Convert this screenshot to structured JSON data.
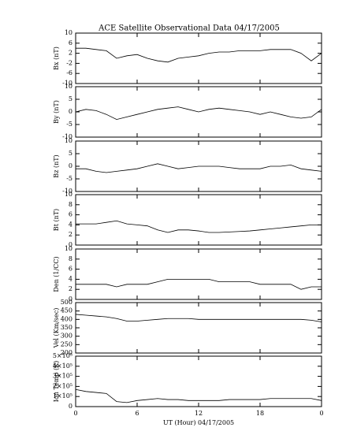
{
  "chart_data": [
    {
      "type": "line",
      "title": "ACE Satellite Observational Data   04/17/2005",
      "ylabel": "Bx (nT)",
      "ylim": [
        -10,
        10
      ],
      "yticks": [
        -10,
        -6,
        -2,
        2,
        6,
        10
      ],
      "x": [
        0,
        1,
        2,
        3,
        4,
        5,
        6,
        7,
        8,
        9,
        10,
        11,
        12,
        13,
        14,
        15,
        16,
        17,
        18,
        19,
        20,
        21,
        22,
        23,
        24
      ],
      "values": [
        4,
        4,
        3.5,
        3,
        0,
        1,
        1.5,
        0,
        -1,
        -1.5,
        0,
        0.5,
        1,
        2,
        2.5,
        2.5,
        3,
        3,
        3,
        3.5,
        3.5,
        3.5,
        2,
        -1,
        2
      ]
    },
    {
      "type": "line",
      "ylabel": "By (nT)",
      "ylim": [
        -10,
        10
      ],
      "yticks": [
        -10,
        -5,
        0,
        5,
        10
      ],
      "x": [
        0,
        1,
        2,
        3,
        4,
        5,
        6,
        7,
        8,
        9,
        10,
        11,
        12,
        13,
        14,
        15,
        16,
        17,
        18,
        19,
        20,
        21,
        22,
        23,
        24
      ],
      "values": [
        0,
        1,
        0.5,
        -1,
        -3,
        -2,
        -1,
        0,
        1,
        1.5,
        2,
        1,
        0,
        1,
        1.5,
        1,
        0.5,
        0,
        -1,
        0,
        -1,
        -2,
        -2.5,
        -2,
        1
      ]
    },
    {
      "type": "line",
      "ylabel": "Bz (nT)",
      "ylim": [
        -10,
        10
      ],
      "yticks": [
        -10,
        -5,
        0,
        5,
        10
      ],
      "x": [
        0,
        1,
        2,
        3,
        4,
        5,
        6,
        7,
        8,
        9,
        10,
        11,
        12,
        13,
        14,
        15,
        16,
        17,
        18,
        19,
        20,
        21,
        22,
        23,
        24
      ],
      "values": [
        -1,
        -1,
        -2,
        -2.5,
        -2,
        -1.5,
        -1,
        0,
        1,
        0,
        -1,
        -0.5,
        0,
        0,
        0,
        -0.5,
        -1,
        -1,
        -1,
        0,
        0,
        0.5,
        -1,
        -1.5,
        -2
      ]
    },
    {
      "type": "line",
      "ylabel": "Bt (nT)",
      "ylim": [
        0,
        10
      ],
      "yticks": [
        0,
        2,
        4,
        6,
        8,
        10
      ],
      "x": [
        0,
        1,
        2,
        3,
        4,
        5,
        6,
        7,
        8,
        9,
        10,
        11,
        12,
        13,
        14,
        15,
        16,
        17,
        18,
        19,
        20,
        21,
        22,
        23,
        24
      ],
      "values": [
        4.2,
        4.2,
        4.2,
        4.5,
        4.8,
        4.2,
        4,
        3.8,
        3,
        2.5,
        3,
        3,
        2.8,
        2.5,
        2.5,
        2.6,
        2.7,
        2.8,
        3,
        3.2,
        3.4,
        3.6,
        3.8,
        4,
        4
      ]
    },
    {
      "type": "line",
      "ylabel": "Den (1/CC)",
      "ylim": [
        0,
        10
      ],
      "yticks": [
        0,
        2,
        4,
        6,
        8,
        10
      ],
      "x": [
        0,
        1,
        2,
        3,
        4,
        5,
        6,
        7,
        8,
        9,
        10,
        11,
        12,
        13,
        14,
        15,
        16,
        17,
        18,
        19,
        20,
        21,
        22,
        23,
        24
      ],
      "values": [
        3,
        3,
        3,
        3,
        2.5,
        3,
        3,
        3,
        3.5,
        4,
        4,
        4,
        4,
        4,
        3.5,
        3.5,
        3.5,
        3.5,
        3,
        3,
        3,
        3,
        2,
        2.5,
        2.5
      ]
    },
    {
      "type": "line",
      "ylabel": "Vel (Km/sec)",
      "ylim": [
        200,
        500
      ],
      "yticks": [
        200,
        250,
        300,
        350,
        400,
        450,
        500
      ],
      "x": [
        0,
        1,
        2,
        3,
        4,
        5,
        6,
        7,
        8,
        9,
        10,
        11,
        12,
        13,
        14,
        15,
        16,
        17,
        18,
        19,
        20,
        21,
        22,
        23,
        24
      ],
      "values": [
        430,
        425,
        420,
        415,
        405,
        390,
        390,
        395,
        400,
        405,
        405,
        405,
        400,
        400,
        400,
        400,
        400,
        400,
        400,
        400,
        400,
        400,
        400,
        395,
        385
      ]
    },
    {
      "type": "line",
      "ylabel": "Ion Temp (K)",
      "xlabel": "UT (Hour)  04/17/2005",
      "ylim": [
        0,
        500000
      ],
      "yticks": [
        0,
        {
          "value": 100000,
          "label": "1×10⁵"
        },
        {
          "value": 200000,
          "label": "2×10⁵"
        },
        {
          "value": 300000,
          "label": "3×10⁵"
        },
        {
          "value": 400000,
          "label": "4×10⁵"
        },
        {
          "value": 500000,
          "label": "5×10⁵"
        }
      ],
      "xlim": [
        0,
        24
      ],
      "xticks": [
        0,
        6,
        12,
        18,
        {
          "value": 24,
          "label": "0"
        }
      ],
      "x": [
        0,
        1,
        2,
        3,
        4,
        5,
        6,
        7,
        8,
        9,
        10,
        11,
        12,
        13,
        14,
        15,
        16,
        17,
        18,
        19,
        20,
        21,
        22,
        23,
        24
      ],
      "values": [
        170000,
        150000,
        140000,
        130000,
        50000,
        40000,
        60000,
        70000,
        80000,
        70000,
        70000,
        60000,
        60000,
        60000,
        60000,
        70000,
        70000,
        70000,
        70000,
        80000,
        80000,
        80000,
        80000,
        80000,
        60000
      ]
    }
  ]
}
